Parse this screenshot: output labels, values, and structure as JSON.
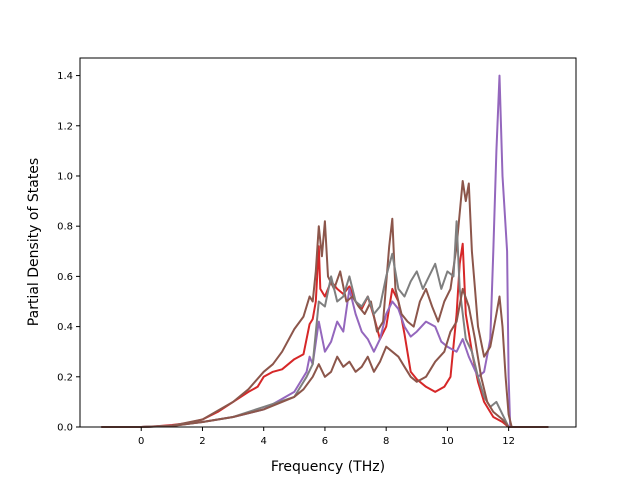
{
  "chart_data": {
    "type": "line",
    "title": "",
    "xlabel": "Frequency (THz)",
    "ylabel": "Partial Density of States",
    "xlim": [
      -2.0,
      14.2
    ],
    "ylim": [
      0.0,
      1.47
    ],
    "xticks": [
      "0",
      "2",
      "4",
      "6",
      "8",
      "10",
      "12"
    ],
    "yticks": [
      "0.0",
      "0.2",
      "0.4",
      "0.6",
      "0.8",
      "1.0",
      "1.2",
      "1.4"
    ],
    "grid": false,
    "legend": "none",
    "series": [
      {
        "color": "#d62728",
        "points": [
          [
            -1.3,
            0
          ],
          [
            0,
            0
          ],
          [
            0.5,
            0.003
          ],
          [
            1,
            0.008
          ],
          [
            1.5,
            0.015
          ],
          [
            2,
            0.03
          ],
          [
            2.5,
            0.06
          ],
          [
            3,
            0.1
          ],
          [
            3.5,
            0.14
          ],
          [
            3.8,
            0.16
          ],
          [
            4,
            0.2
          ],
          [
            4.3,
            0.22
          ],
          [
            4.6,
            0.23
          ],
          [
            5,
            0.27
          ],
          [
            5.3,
            0.29
          ],
          [
            5.5,
            0.41
          ],
          [
            5.6,
            0.43
          ],
          [
            5.7,
            0.5
          ],
          [
            5.8,
            0.72
          ],
          [
            5.85,
            0.55
          ],
          [
            6,
            0.52
          ],
          [
            6.2,
            0.58
          ],
          [
            6.4,
            0.55
          ],
          [
            6.6,
            0.53
          ],
          [
            6.8,
            0.56
          ],
          [
            7,
            0.5
          ],
          [
            7.2,
            0.47
          ],
          [
            7.4,
            0.52
          ],
          [
            7.6,
            0.44
          ],
          [
            7.8,
            0.35
          ],
          [
            8,
            0.4
          ],
          [
            8.2,
            0.55
          ],
          [
            8.4,
            0.5
          ],
          [
            8.6,
            0.37
          ],
          [
            8.8,
            0.22
          ],
          [
            9,
            0.19
          ],
          [
            9.3,
            0.16
          ],
          [
            9.6,
            0.14
          ],
          [
            9.9,
            0.16
          ],
          [
            10.1,
            0.2
          ],
          [
            10.3,
            0.45
          ],
          [
            10.4,
            0.65
          ],
          [
            10.5,
            0.73
          ],
          [
            10.6,
            0.45
          ],
          [
            10.8,
            0.3
          ],
          [
            11,
            0.18
          ],
          [
            11.2,
            0.1
          ],
          [
            11.5,
            0.04
          ],
          [
            11.8,
            0.02
          ],
          [
            12,
            0
          ],
          [
            13.3,
            0
          ]
        ]
      },
      {
        "color": "#9467bd",
        "points": [
          [
            -1.3,
            0
          ],
          [
            0,
            0
          ],
          [
            1,
            0.005
          ],
          [
            2,
            0.02
          ],
          [
            3,
            0.04
          ],
          [
            4,
            0.07
          ],
          [
            5,
            0.14
          ],
          [
            5.4,
            0.22
          ],
          [
            5.5,
            0.28
          ],
          [
            5.6,
            0.25
          ],
          [
            5.8,
            0.42
          ],
          [
            6,
            0.3
          ],
          [
            6.2,
            0.34
          ],
          [
            6.4,
            0.42
          ],
          [
            6.6,
            0.38
          ],
          [
            6.8,
            0.55
          ],
          [
            7,
            0.45
          ],
          [
            7.2,
            0.38
          ],
          [
            7.4,
            0.35
          ],
          [
            7.6,
            0.3
          ],
          [
            7.8,
            0.35
          ],
          [
            8,
            0.45
          ],
          [
            8.2,
            0.5
          ],
          [
            8.4,
            0.47
          ],
          [
            8.6,
            0.4
          ],
          [
            8.8,
            0.36
          ],
          [
            9,
            0.38
          ],
          [
            9.3,
            0.42
          ],
          [
            9.6,
            0.4
          ],
          [
            9.8,
            0.34
          ],
          [
            10,
            0.32
          ],
          [
            10.3,
            0.3
          ],
          [
            10.5,
            0.35
          ],
          [
            10.7,
            0.28
          ],
          [
            11,
            0.2
          ],
          [
            11.2,
            0.22
          ],
          [
            11.4,
            0.35
          ],
          [
            11.5,
            0.7
          ],
          [
            11.6,
            1.1
          ],
          [
            11.7,
            1.4
          ],
          [
            11.8,
            1.0
          ],
          [
            11.95,
            0.7
          ],
          [
            12,
            0.2
          ],
          [
            12.05,
            0
          ],
          [
            13.3,
            0
          ]
        ]
      },
      {
        "color": "#8c564b",
        "points": [
          [
            -1.3,
            0
          ],
          [
            0,
            0
          ],
          [
            1,
            0.005
          ],
          [
            2,
            0.03
          ],
          [
            3,
            0.1
          ],
          [
            3.5,
            0.15
          ],
          [
            4,
            0.22
          ],
          [
            4.3,
            0.25
          ],
          [
            4.6,
            0.3
          ],
          [
            5,
            0.39
          ],
          [
            5.3,
            0.44
          ],
          [
            5.5,
            0.52
          ],
          [
            5.6,
            0.5
          ],
          [
            5.7,
            0.62
          ],
          [
            5.8,
            0.8
          ],
          [
            5.9,
            0.68
          ],
          [
            6,
            0.82
          ],
          [
            6.1,
            0.6
          ],
          [
            6.3,
            0.55
          ],
          [
            6.5,
            0.62
          ],
          [
            6.7,
            0.5
          ],
          [
            6.9,
            0.52
          ],
          [
            7.1,
            0.48
          ],
          [
            7.3,
            0.45
          ],
          [
            7.5,
            0.5
          ],
          [
            7.7,
            0.38
          ],
          [
            7.9,
            0.42
          ],
          [
            8.1,
            0.72
          ],
          [
            8.2,
            0.83
          ],
          [
            8.3,
            0.55
          ],
          [
            8.5,
            0.45
          ],
          [
            8.7,
            0.42
          ],
          [
            8.9,
            0.4
          ],
          [
            9.1,
            0.5
          ],
          [
            9.3,
            0.55
          ],
          [
            9.5,
            0.48
          ],
          [
            9.7,
            0.42
          ],
          [
            9.9,
            0.5
          ],
          [
            10.1,
            0.55
          ],
          [
            10.3,
            0.72
          ],
          [
            10.5,
            0.98
          ],
          [
            10.6,
            0.9
          ],
          [
            10.7,
            0.97
          ],
          [
            10.8,
            0.7
          ],
          [
            10.9,
            0.55
          ],
          [
            11,
            0.4
          ],
          [
            11.2,
            0.28
          ],
          [
            11.4,
            0.32
          ],
          [
            11.6,
            0.45
          ],
          [
            11.7,
            0.52
          ],
          [
            11.8,
            0.4
          ],
          [
            11.9,
            0.2
          ],
          [
            12,
            0.05
          ],
          [
            12.1,
            0
          ],
          [
            13.3,
            0
          ]
        ]
      },
      {
        "color": "#7f7f7f",
        "points": [
          [
            -1.3,
            0
          ],
          [
            0,
            0
          ],
          [
            1,
            0.005
          ],
          [
            2,
            0.02
          ],
          [
            3,
            0.04
          ],
          [
            4,
            0.08
          ],
          [
            5,
            0.12
          ],
          [
            5.4,
            0.2
          ],
          [
            5.6,
            0.25
          ],
          [
            5.8,
            0.5
          ],
          [
            6,
            0.48
          ],
          [
            6.2,
            0.6
          ],
          [
            6.4,
            0.5
          ],
          [
            6.6,
            0.52
          ],
          [
            6.8,
            0.6
          ],
          [
            7,
            0.5
          ],
          [
            7.2,
            0.48
          ],
          [
            7.4,
            0.52
          ],
          [
            7.6,
            0.45
          ],
          [
            7.8,
            0.48
          ],
          [
            8,
            0.6
          ],
          [
            8.2,
            0.69
          ],
          [
            8.4,
            0.55
          ],
          [
            8.6,
            0.52
          ],
          [
            8.8,
            0.58
          ],
          [
            9,
            0.62
          ],
          [
            9.2,
            0.55
          ],
          [
            9.4,
            0.6
          ],
          [
            9.6,
            0.65
          ],
          [
            9.8,
            0.55
          ],
          [
            10,
            0.62
          ],
          [
            10.2,
            0.6
          ],
          [
            10.3,
            0.82
          ],
          [
            10.4,
            0.55
          ],
          [
            10.6,
            0.35
          ],
          [
            10.8,
            0.3
          ],
          [
            11,
            0.2
          ],
          [
            11.2,
            0.12
          ],
          [
            11.4,
            0.08
          ],
          [
            11.6,
            0.1
          ],
          [
            11.8,
            0.05
          ],
          [
            12,
            0
          ],
          [
            13.3,
            0
          ]
        ]
      },
      {
        "color": "#8c564b",
        "points": [
          [
            -1.3,
            0
          ],
          [
            0,
            0
          ],
          [
            1,
            0.004
          ],
          [
            2,
            0.02
          ],
          [
            3,
            0.04
          ],
          [
            4,
            0.07
          ],
          [
            5,
            0.12
          ],
          [
            5.3,
            0.15
          ],
          [
            5.6,
            0.2
          ],
          [
            5.8,
            0.25
          ],
          [
            6,
            0.2
          ],
          [
            6.2,
            0.22
          ],
          [
            6.4,
            0.28
          ],
          [
            6.6,
            0.24
          ],
          [
            6.8,
            0.26
          ],
          [
            7,
            0.22
          ],
          [
            7.2,
            0.24
          ],
          [
            7.4,
            0.28
          ],
          [
            7.6,
            0.22
          ],
          [
            7.8,
            0.26
          ],
          [
            8,
            0.32
          ],
          [
            8.2,
            0.3
          ],
          [
            8.4,
            0.28
          ],
          [
            8.6,
            0.24
          ],
          [
            8.8,
            0.2
          ],
          [
            9,
            0.18
          ],
          [
            9.3,
            0.2
          ],
          [
            9.6,
            0.26
          ],
          [
            9.9,
            0.3
          ],
          [
            10.1,
            0.38
          ],
          [
            10.3,
            0.42
          ],
          [
            10.5,
            0.55
          ],
          [
            10.7,
            0.48
          ],
          [
            10.9,
            0.35
          ],
          [
            11.1,
            0.2
          ],
          [
            11.3,
            0.1
          ],
          [
            11.5,
            0.06
          ],
          [
            11.8,
            0.03
          ],
          [
            12,
            0
          ],
          [
            13.3,
            0
          ]
        ]
      }
    ]
  }
}
